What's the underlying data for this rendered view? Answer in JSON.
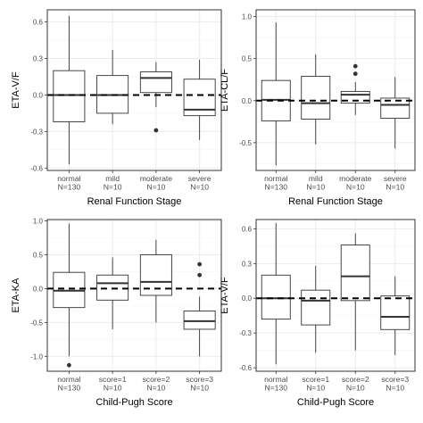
{
  "colors": {
    "panel_background": "#ffffff",
    "grid_major": "#ebebeb",
    "grid_minor": "#f5f5f5",
    "panel_border": "#333333",
    "box_line": "#333333",
    "box_fill": "#ffffff",
    "median_line": "#333333",
    "reference_line": "#000000",
    "text": "#4d4d4d"
  },
  "chart_data": [
    {
      "type": "boxplot",
      "xlabel": "Renal Function Stage",
      "ylabel": "ETA-V/F",
      "ylim": [
        -0.62,
        0.7
      ],
      "yticks": [
        0.6,
        0.3,
        0.0,
        -0.3,
        -0.6
      ],
      "ytick_labels": [
        "0.6",
        "0.3",
        "0.0",
        "-0.3",
        "-0.6"
      ],
      "reference_y": 0.0,
      "grid": true,
      "categories": [
        "normal\nN=130",
        "mild\nN=10",
        "moderate\nN=10",
        "severe\nN=10"
      ],
      "boxes": [
        {
          "whisker_low": -0.57,
          "q1": -0.22,
          "median": 0.0,
          "q3": 0.2,
          "whisker_high": 0.65,
          "outliers": []
        },
        {
          "whisker_low": -0.24,
          "q1": -0.15,
          "median": 0.0,
          "q3": 0.16,
          "whisker_high": 0.37,
          "outliers": []
        },
        {
          "whisker_low": -0.1,
          "q1": 0.02,
          "median": 0.14,
          "q3": 0.19,
          "whisker_high": 0.27,
          "outliers": [
            -0.29
          ]
        },
        {
          "whisker_low": -0.37,
          "q1": -0.17,
          "median": -0.12,
          "q3": 0.13,
          "whisker_high": 0.29,
          "outliers": []
        }
      ]
    },
    {
      "type": "boxplot",
      "xlabel": "Renal Function Stage",
      "ylabel": "ETA-CL/F",
      "ylim": [
        -0.83,
        1.08
      ],
      "yticks": [
        1.0,
        0.5,
        0.0,
        -0.5
      ],
      "ytick_labels": [
        "1.0",
        "0.5",
        "0.0",
        "-0.5"
      ],
      "reference_y": 0.0,
      "grid": true,
      "categories": [
        "normal\nN=130",
        "mild\nN=10",
        "moderate\nN=10",
        "severe\nN=10"
      ],
      "boxes": [
        {
          "whisker_low": -0.77,
          "q1": -0.24,
          "median": 0.01,
          "q3": 0.24,
          "whisker_high": 0.93,
          "outliers": []
        },
        {
          "whisker_low": -0.52,
          "q1": -0.22,
          "median": -0.03,
          "q3": 0.29,
          "whisker_high": 0.55,
          "outliers": []
        },
        {
          "whisker_low": -0.17,
          "q1": -0.03,
          "median": 0.07,
          "q3": 0.11,
          "whisker_high": 0.22,
          "outliers": [
            0.32,
            0.41
          ]
        },
        {
          "whisker_low": -0.57,
          "q1": -0.21,
          "median": -0.05,
          "q3": 0.03,
          "whisker_high": 0.28,
          "outliers": []
        }
      ]
    },
    {
      "type": "boxplot",
      "xlabel": "Child-Pugh Score",
      "ylabel": "ETA-KA",
      "ylim": [
        -1.22,
        1.02
      ],
      "yticks": [
        1.0,
        0.5,
        0.0,
        -0.5,
        -1.0
      ],
      "ytick_labels": [
        "1.0",
        "0.5",
        "0.0",
        "-0.5",
        "-1.0"
      ],
      "reference_y": 0.0,
      "grid": true,
      "categories": [
        "normal\nN=130",
        "score=1\nN=10",
        "score=2\nN=10",
        "score=3\nN=10"
      ],
      "boxes": [
        {
          "whisker_low": -1.0,
          "q1": -0.28,
          "median": -0.03,
          "q3": 0.24,
          "whisker_high": 0.96,
          "outliers": [
            -1.13
          ]
        },
        {
          "whisker_low": -0.6,
          "q1": -0.17,
          "median": 0.08,
          "q3": 0.2,
          "whisker_high": 0.46,
          "outliers": []
        },
        {
          "whisker_low": -0.5,
          "q1": -0.1,
          "median": 0.1,
          "q3": 0.5,
          "whisker_high": 0.72,
          "outliers": []
        },
        {
          "whisker_low": -1.0,
          "q1": -0.6,
          "median": -0.48,
          "q3": -0.33,
          "whisker_high": -0.12,
          "outliers": [
            0.2,
            0.36
          ]
        }
      ]
    },
    {
      "type": "boxplot",
      "xlabel": "Child-Pugh Score",
      "ylabel": "ETA-V/F",
      "ylim": [
        -0.63,
        0.68
      ],
      "yticks": [
        0.6,
        0.3,
        0.0,
        -0.3,
        -0.6
      ],
      "ytick_labels": [
        "0.6",
        "0.3",
        "0.0",
        "-0.3",
        "-0.6"
      ],
      "reference_y": 0.0,
      "grid": true,
      "categories": [
        "normal\nN=130",
        "score=1\nN=10",
        "score=2\nN=10",
        "score=3\nN=10"
      ],
      "boxes": [
        {
          "whisker_low": -0.57,
          "q1": -0.18,
          "median": 0.0,
          "q3": 0.2,
          "whisker_high": 0.65,
          "outliers": []
        },
        {
          "whisker_low": -0.47,
          "q1": -0.23,
          "median": -0.02,
          "q3": 0.07,
          "whisker_high": 0.28,
          "outliers": []
        },
        {
          "whisker_low": -0.45,
          "q1": -0.02,
          "median": 0.19,
          "q3": 0.46,
          "whisker_high": 0.56,
          "outliers": []
        },
        {
          "whisker_low": -0.49,
          "q1": -0.27,
          "median": -0.16,
          "q3": 0.02,
          "whisker_high": 0.19,
          "outliers": []
        }
      ]
    }
  ]
}
